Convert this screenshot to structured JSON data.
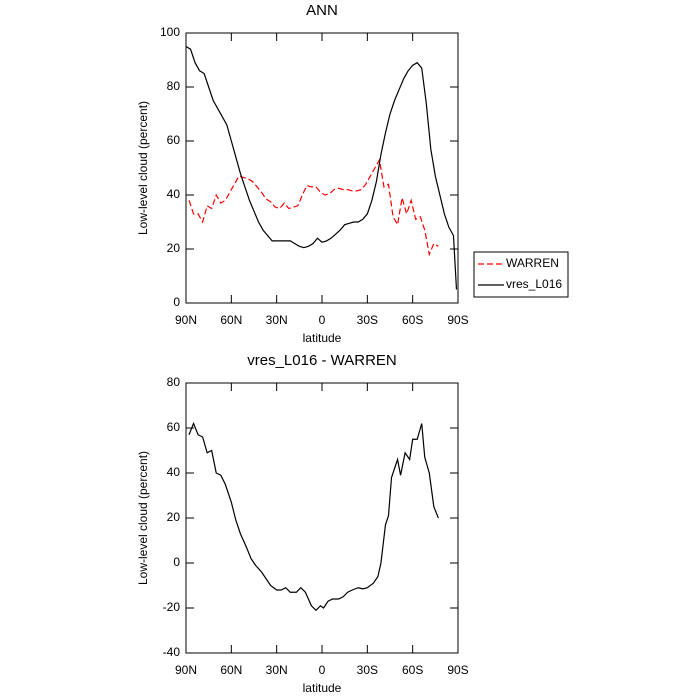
{
  "chart_data": [
    {
      "type": "line",
      "title": "ANN",
      "xlabel": "latitude",
      "ylabel": "Low-level cloud (percent)",
      "xlim": [
        90,
        -90
      ],
      "ylim": [
        0,
        100
      ],
      "xticks": [
        {
          "value": 90,
          "label": "90N"
        },
        {
          "value": 60,
          "label": "60N"
        },
        {
          "value": 30,
          "label": "30N"
        },
        0,
        {
          "value": -30,
          "label": "30S"
        },
        {
          "value": -60,
          "label": "60S"
        },
        {
          "value": -90,
          "label": "90S"
        }
      ],
      "yticks": [
        0,
        20,
        40,
        60,
        80,
        100
      ],
      "legend": "right",
      "series": [
        {
          "name": "WARREN",
          "color": "#ff0000",
          "line_style": "dashed",
          "x": [
            88,
            85,
            82,
            79,
            76,
            73,
            70,
            67,
            64,
            61,
            58,
            55,
            52,
            49,
            46,
            43,
            40,
            37,
            34,
            31,
            28,
            25,
            22,
            19,
            16,
            13,
            10,
            7,
            4,
            1,
            -2,
            -5,
            -8,
            -11,
            -14,
            -17,
            -20,
            -23,
            -26,
            -29,
            -32,
            -35,
            -38,
            -41,
            -44,
            -47,
            -50,
            -53,
            -56,
            -59,
            -62,
            -65,
            -68,
            -71,
            -74,
            -77
          ],
          "values": [
            38,
            33,
            33,
            30,
            36,
            35,
            40,
            37,
            38,
            41,
            44,
            47,
            46.5,
            46,
            45,
            43,
            41,
            38.5,
            37.5,
            35.5,
            35,
            37,
            35,
            35.5,
            36,
            40,
            43.5,
            43,
            43,
            41,
            40,
            40.5,
            42,
            42.5,
            42,
            42,
            41.5,
            41.5,
            42,
            44,
            47,
            50,
            53,
            43,
            44,
            32,
            29,
            39,
            33,
            38,
            31,
            32,
            27,
            18,
            22,
            21
          ]
        },
        {
          "name": "vres_L016",
          "color": "#000000",
          "line_style": "solid",
          "x": [
            90,
            87,
            84,
            81,
            78,
            75,
            72,
            69,
            66,
            63,
            60,
            57,
            54,
            51,
            48,
            45,
            42,
            39,
            36,
            33,
            30,
            27,
            24,
            21,
            18,
            15,
            12,
            9,
            6,
            3,
            0,
            -3,
            -6,
            -9,
            -12,
            -15,
            -18,
            -21,
            -24,
            -27,
            -30,
            -33,
            -36,
            -39,
            -42,
            -45,
            -48,
            -51,
            -54,
            -57,
            -60,
            -63,
            -66,
            -69,
            -72,
            -75,
            -78,
            -81,
            -84,
            -87,
            -89
          ],
          "values": [
            95,
            94,
            89,
            86,
            85,
            80,
            75,
            72,
            69,
            66,
            60,
            54,
            48,
            43,
            38,
            34,
            30,
            27,
            25,
            23,
            23,
            23,
            23,
            23,
            22,
            21,
            20.5,
            21,
            22,
            24,
            22.5,
            23,
            24,
            25.5,
            27,
            29,
            29.5,
            30,
            30,
            31,
            33,
            38,
            45,
            55,
            63,
            70,
            75,
            79,
            83,
            86,
            88,
            89,
            87,
            74,
            57,
            47,
            40,
            33,
            28,
            25,
            5
          ]
        }
      ]
    },
    {
      "type": "line",
      "title": "vres_L016 - WARREN",
      "xlabel": "latitude",
      "ylabel": "Low-level cloud (percent)",
      "xlim": [
        90,
        -90
      ],
      "ylim": [
        -40,
        80
      ],
      "xticks": [
        {
          "value": 90,
          "label": "90N"
        },
        {
          "value": 60,
          "label": "60N"
        },
        {
          "value": 30,
          "label": "30N"
        },
        0,
        {
          "value": -30,
          "label": "30S"
        },
        {
          "value": -60,
          "label": "60S"
        },
        {
          "value": -90,
          "label": "90S"
        }
      ],
      "yticks": [
        -40,
        -20,
        0,
        20,
        40,
        60,
        80
      ],
      "series": [
        {
          "color": "#000000",
          "line_style": "solid",
          "x": [
            88,
            85,
            82,
            79,
            76,
            73,
            70,
            67,
            64,
            60,
            57,
            54,
            50,
            47,
            44,
            40,
            37,
            34,
            30,
            27,
            24,
            21,
            17,
            14,
            11,
            7,
            4,
            1,
            -1,
            -4,
            -7,
            -11,
            -14,
            -17,
            -20,
            -24,
            -27,
            -30,
            -34,
            -37,
            -39,
            -42,
            -44,
            -46,
            -50,
            -52,
            -55,
            -58,
            -60,
            -63,
            -66,
            -68,
            -71,
            -74,
            -77
          ],
          "values": [
            57,
            62,
            57,
            56,
            49,
            50,
            40,
            39,
            35,
            27,
            19,
            13,
            7,
            2,
            -1,
            -4,
            -7,
            -10,
            -12,
            -12,
            -11,
            -13,
            -13,
            -11,
            -13,
            -19,
            -21,
            -19,
            -20,
            -17,
            -16,
            -16,
            -15,
            -13,
            -12,
            -11,
            -11.5,
            -11,
            -9,
            -6,
            0,
            17,
            21,
            38,
            46,
            39,
            49,
            46,
            55,
            55,
            62,
            47,
            40,
            25,
            20
          ]
        }
      ]
    }
  ]
}
